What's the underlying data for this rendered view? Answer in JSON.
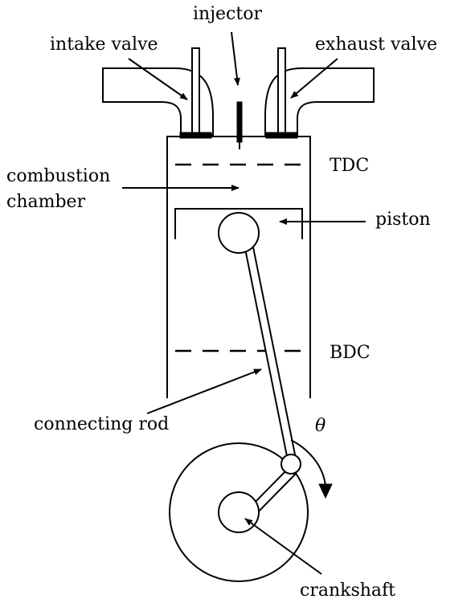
{
  "labels": {
    "injector": "injector",
    "intake_valve": "intake valve",
    "exhaust_valve": "exhaust valve",
    "tdc": "TDC",
    "combustion_line1": "combustion",
    "combustion_line2": "chamber",
    "piston": "piston",
    "bdc": "BDC",
    "connecting_rod": "connecting rod",
    "theta": "θ",
    "crankshaft": "crankshaft"
  },
  "colors": {
    "stroke": "#000000",
    "background": "#ffffff"
  }
}
